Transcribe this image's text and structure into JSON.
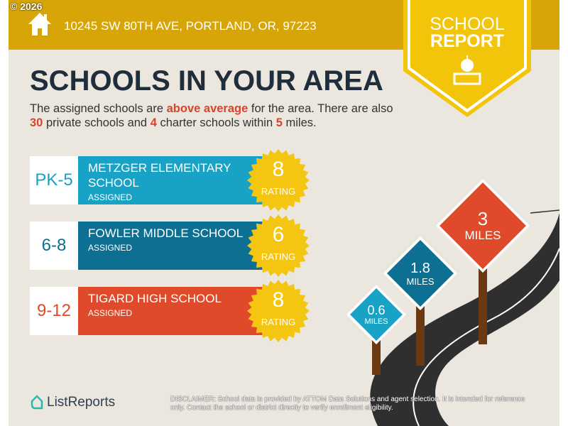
{
  "copyright": "© 2026",
  "address": "10245 SW 80TH AVE, PORTLAND, OR, 97223",
  "badge": {
    "line1": "SCHOOL",
    "line2": "REPORT"
  },
  "title": "SCHOOLS IN YOUR AREA",
  "intro": {
    "p1": "The assigned schools are ",
    "h1": "above average",
    "p2": " for the area. There are also ",
    "h2": "30",
    "p3": " private schools and ",
    "h3": "4",
    "p4": " charter schools within ",
    "h4": "5",
    "p5": " miles."
  },
  "schools": [
    {
      "grade": "PK-5",
      "name": "METZGER ELEMENTARY SCHOOL",
      "status": "ASSIGNED",
      "rating": "8",
      "rating_label": "RATING",
      "color": "#17a2c6"
    },
    {
      "grade": "6-8",
      "name": "FOWLER MIDDLE SCHOOL",
      "status": "ASSIGNED",
      "rating": "6",
      "rating_label": "RATING",
      "color": "#0d6f91"
    },
    {
      "grade": "9-12",
      "name": "TIGARD HIGH SCHOOL",
      "status": "ASSIGNED",
      "rating": "8",
      "rating_label": "RATING",
      "color": "#df4a2b"
    }
  ],
  "signs": [
    {
      "value": "0.6",
      "unit": "MILES",
      "color": "#17a2c6"
    },
    {
      "value": "1.8",
      "unit": "MILES",
      "color": "#0d6f91"
    },
    {
      "value": "3",
      "unit": "MILES",
      "color": "#df4a2b"
    }
  ],
  "logo": "ListReports",
  "disclaimer": {
    "label": "DISCLAIMER:",
    "text": " School data is provided by ATTOM Data Solutions and agent selection. It is intended for reference only. Contact the school or district directly to verify enrollment eligibility."
  }
}
